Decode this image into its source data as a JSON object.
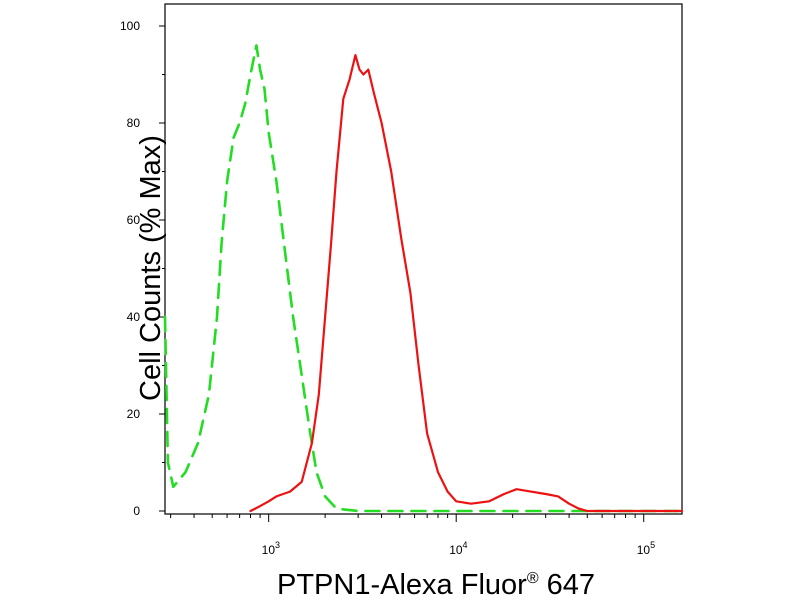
{
  "chart_data": {
    "type": "line",
    "title": "",
    "xlabel": "PTPN1-Alexa Fluor",
    "xlabel_sup": "®",
    "xlabel_tail": " 647",
    "ylabel": "Cell Counts (% Max)",
    "x_scale": "log",
    "xlim": [
      280,
      160000
    ],
    "ylim": [
      0,
      105
    ],
    "grid": false,
    "x_ticks": [
      {
        "value": 1000,
        "base": "10",
        "exp": "3"
      },
      {
        "value": 10000,
        "base": "10",
        "exp": "4"
      },
      {
        "value": 100000,
        "base": "10",
        "exp": "5"
      }
    ],
    "y_ticks": [
      {
        "value": 0,
        "label": "0"
      },
      {
        "value": 20,
        "label": "20"
      },
      {
        "value": 40,
        "label": "40"
      },
      {
        "value": 60,
        "label": "60"
      },
      {
        "value": 80,
        "label": "80"
      },
      {
        "value": 100,
        "label": "100"
      }
    ],
    "series": [
      {
        "color": "#22dd22",
        "dash": "dashed",
        "points": [
          [
            280,
            40
          ],
          [
            290,
            10
          ],
          [
            310,
            5
          ],
          [
            360,
            8
          ],
          [
            420,
            14
          ],
          [
            480,
            24
          ],
          [
            530,
            40
          ],
          [
            560,
            55
          ],
          [
            600,
            68
          ],
          [
            650,
            77
          ],
          [
            700,
            80
          ],
          [
            750,
            84
          ],
          [
            800,
            90
          ],
          [
            860,
            96
          ],
          [
            900,
            91
          ],
          [
            950,
            87
          ],
          [
            1000,
            78
          ],
          [
            1100,
            68
          ],
          [
            1200,
            56
          ],
          [
            1350,
            40
          ],
          [
            1500,
            28
          ],
          [
            1650,
            17
          ],
          [
            1800,
            8
          ],
          [
            2000,
            3
          ],
          [
            2300,
            0.5
          ],
          [
            3000,
            0
          ],
          [
            160000,
            0
          ]
        ]
      },
      {
        "color": "#ee1111",
        "dash": "solid",
        "points": [
          [
            800,
            0
          ],
          [
            900,
            1
          ],
          [
            1000,
            2
          ],
          [
            1100,
            3
          ],
          [
            1300,
            4
          ],
          [
            1500,
            6
          ],
          [
            1700,
            14
          ],
          [
            1850,
            24
          ],
          [
            2000,
            40
          ],
          [
            2150,
            55
          ],
          [
            2300,
            70
          ],
          [
            2500,
            85
          ],
          [
            2700,
            89
          ],
          [
            2900,
            94
          ],
          [
            3050,
            91
          ],
          [
            3200,
            90
          ],
          [
            3400,
            91
          ],
          [
            3650,
            86
          ],
          [
            4000,
            80
          ],
          [
            4500,
            70
          ],
          [
            5100,
            56
          ],
          [
            5700,
            45
          ],
          [
            6300,
            30
          ],
          [
            7000,
            16
          ],
          [
            8000,
            8
          ],
          [
            9000,
            4
          ],
          [
            10000,
            2
          ],
          [
            12000,
            1.5
          ],
          [
            15000,
            2
          ],
          [
            18000,
            3.5
          ],
          [
            21000,
            4.5
          ],
          [
            25000,
            4
          ],
          [
            30000,
            3.5
          ],
          [
            35000,
            3
          ],
          [
            40000,
            1.5
          ],
          [
            45000,
            0.5
          ],
          [
            50000,
            0
          ],
          [
            160000,
            0
          ]
        ]
      }
    ]
  }
}
